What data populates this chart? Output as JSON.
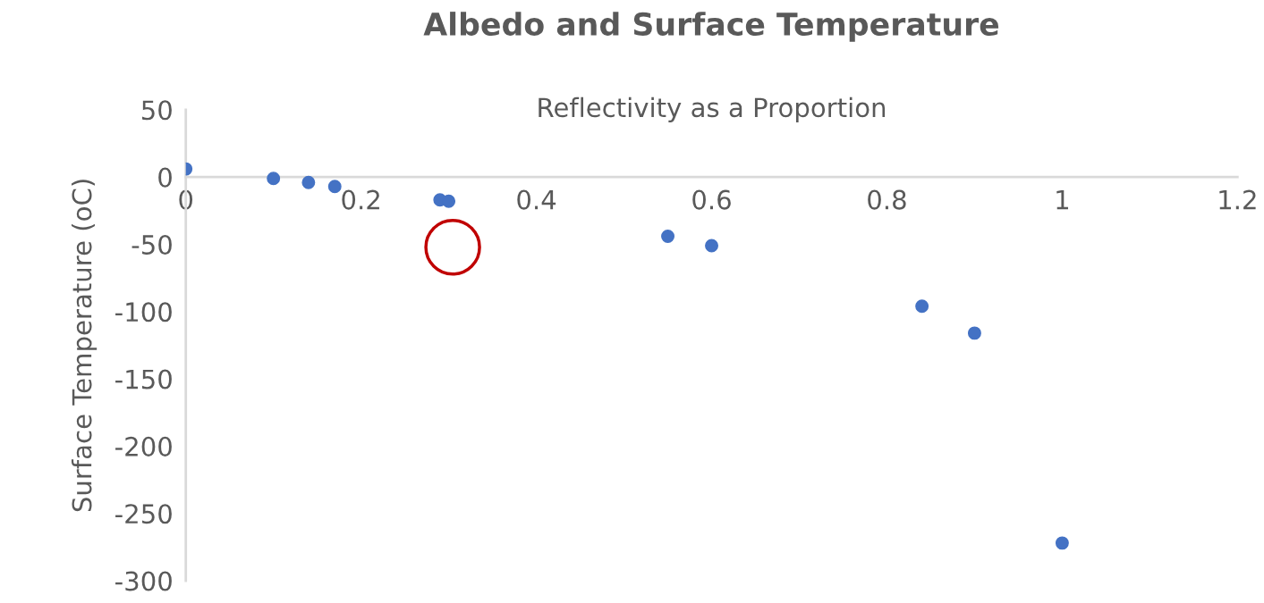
{
  "chart_data": {
    "type": "scatter",
    "title": "Albedo and Surface Temperature",
    "xlabel": "Reflectivity as a Proportion",
    "ylabel": "Surface Temperature (oC)",
    "x": [
      0,
      0.1,
      0.14,
      0.17,
      0.29,
      0.3,
      0.55,
      0.6,
      0.84,
      0.9,
      1.0
    ],
    "series": [
      {
        "color": "#4472c4",
        "values": [
          6,
          -1,
          -4,
          -7,
          -17,
          -18,
          -44,
          -51,
          -96,
          -116,
          -272
        ]
      }
    ],
    "xlim": [
      0,
      1.2
    ],
    "xticks": [
      0,
      0.2,
      0.4,
      0.6,
      0.8,
      1,
      1.2
    ],
    "ylim": [
      -300,
      50
    ],
    "yticks": [
      -300,
      -250,
      -200,
      -150,
      -100,
      -50,
      0,
      50
    ],
    "grid": false,
    "legend": false,
    "marker": "circle"
  }
}
